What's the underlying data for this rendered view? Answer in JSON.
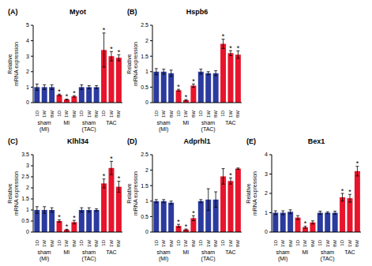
{
  "chart_data": [
    {
      "type": "bar",
      "panel": "(A)",
      "title": "Myot",
      "ylabel": "Relative mRNA expression",
      "categories": [
        "1D",
        "1W",
        "8W",
        "1D",
        "1W",
        "8W",
        "1D",
        "1W",
        "8W",
        "1D",
        "1W",
        "8W"
      ],
      "groups": [
        "sham (MI)",
        "MI",
        "sham (TAC)",
        "TAC"
      ],
      "values": [
        1.0,
        1.0,
        1.0,
        0.5,
        0.2,
        0.4,
        1.0,
        1.0,
        1.0,
        3.4,
        3.0,
        2.9
      ],
      "errors": [
        0.2,
        0.15,
        0.15,
        0.05,
        0.03,
        0.05,
        0.15,
        0.1,
        0.1,
        1.1,
        0.3,
        0.2
      ],
      "annotations": [
        null,
        null,
        null,
        "*",
        "*",
        "*",
        null,
        null,
        null,
        "*",
        "*",
        "*"
      ],
      "colors": [
        "#2b3a9e",
        "#2b3a9e",
        "#2b3a9e",
        "#e8142b",
        "#e8142b",
        "#e8142b",
        "#2b3a9e",
        "#2b3a9e",
        "#2b3a9e",
        "#e8142b",
        "#e8142b",
        "#e8142b"
      ],
      "ylim": [
        0,
        5
      ],
      "yticks": [
        0,
        1,
        2,
        3,
        4,
        5
      ]
    },
    {
      "type": "bar",
      "panel": "(B)",
      "title": "Hspb6",
      "ylabel": "Relative mRNA expression",
      "categories": [
        "1D",
        "1W",
        "8W",
        "1D",
        "1W",
        "8W",
        "1D",
        "1W",
        "8W",
        "1D",
        "1W",
        "8W"
      ],
      "groups": [
        "sham (MI)",
        "MI",
        "sham (TAC)",
        "TAC"
      ],
      "values": [
        1.0,
        1.0,
        0.95,
        0.4,
        0.08,
        0.55,
        1.0,
        0.95,
        0.95,
        1.9,
        1.6,
        1.55
      ],
      "errors": [
        0.1,
        0.08,
        0.1,
        0.03,
        0.02,
        0.05,
        0.08,
        0.05,
        0.08,
        0.15,
        0.08,
        0.12
      ],
      "annotations": [
        null,
        null,
        null,
        "*",
        "*",
        "*",
        null,
        null,
        null,
        "*",
        "*",
        "*"
      ],
      "colors": [
        "#2b3a9e",
        "#2b3a9e",
        "#2b3a9e",
        "#e8142b",
        "#e8142b",
        "#e8142b",
        "#2b3a9e",
        "#2b3a9e",
        "#2b3a9e",
        "#e8142b",
        "#e8142b",
        "#e8142b"
      ],
      "ylim": [
        0,
        2.5
      ],
      "yticks": [
        0,
        0.5,
        1,
        1.5,
        2,
        2.5
      ]
    },
    {
      "type": "bar",
      "panel": "(C)",
      "title": "Klhl34",
      "ylabel": "Relative mRNA expression",
      "categories": [
        "1D",
        "1W",
        "8W",
        "1D",
        "1W",
        "8W",
        "1D",
        "1W",
        "8W",
        "1D",
        "1W",
        "8W"
      ],
      "groups": [
        "sham (MI)",
        "MI",
        "sham (TAC)",
        "TAC"
      ],
      "values": [
        1.0,
        1.0,
        1.0,
        0.5,
        0.1,
        0.45,
        1.0,
        1.0,
        1.0,
        2.2,
        2.9,
        2.05
      ],
      "errors": [
        0.15,
        0.15,
        0.1,
        0.05,
        0.03,
        0.08,
        0.1,
        0.1,
        0.05,
        0.2,
        0.3,
        0.25
      ],
      "annotations": [
        null,
        null,
        null,
        "*",
        "*",
        "*",
        null,
        null,
        null,
        "*",
        "*",
        "*"
      ],
      "colors": [
        "#2b3a9e",
        "#2b3a9e",
        "#2b3a9e",
        "#e8142b",
        "#e8142b",
        "#e8142b",
        "#2b3a9e",
        "#2b3a9e",
        "#2b3a9e",
        "#e8142b",
        "#e8142b",
        "#e8142b"
      ],
      "ylim": [
        0,
        3.5
      ],
      "yticks": [
        0,
        0.5,
        1,
        1.5,
        2,
        2.5,
        3,
        3.5
      ]
    },
    {
      "type": "bar",
      "panel": "(D)",
      "title": "Adprhl1",
      "ylabel": "Relative mRNA expression",
      "categories": [
        "1D",
        "1W",
        "8W",
        "1D",
        "1W",
        "8W",
        "1D",
        "1W",
        "8W",
        "1D",
        "1W",
        "8W"
      ],
      "groups": [
        "sham (MI)",
        "MI",
        "sham (TAC)",
        "TAC"
      ],
      "values": [
        1.0,
        1.0,
        0.95,
        0.2,
        0.08,
        0.45,
        1.0,
        1.05,
        1.05,
        1.8,
        1.65,
        2.05
      ],
      "errors": [
        0.05,
        0.05,
        0.05,
        0.05,
        0.02,
        0.08,
        0.05,
        0.35,
        0.25,
        0.25,
        0.1,
        0.02
      ],
      "annotations": [
        null,
        null,
        null,
        "*",
        "*",
        "*",
        null,
        null,
        null,
        null,
        "*",
        null
      ],
      "colors": [
        "#2b3a9e",
        "#2b3a9e",
        "#2b3a9e",
        "#e8142b",
        "#e8142b",
        "#e8142b",
        "#2b3a9e",
        "#2b3a9e",
        "#2b3a9e",
        "#e8142b",
        "#e8142b",
        "#e8142b"
      ],
      "ylim": [
        0,
        2.5
      ],
      "yticks": [
        0,
        0.5,
        1,
        1.5,
        2,
        2.5
      ]
    },
    {
      "type": "bar",
      "panel": "(E)",
      "title": "Bex1",
      "ylabel": "Relative mRNA expression",
      "categories": [
        "1D",
        "1W",
        "8W",
        "1D",
        "1W",
        "8W",
        "1D",
        "1W",
        "8W",
        "1D",
        "1W",
        "8W"
      ],
      "groups": [
        "sham (MI)",
        "MI",
        "sham (TAC)",
        "TAC"
      ],
      "values": [
        1.0,
        1.0,
        1.05,
        0.75,
        0.25,
        0.5,
        1.0,
        1.0,
        1.0,
        1.8,
        1.75,
        3.15
      ],
      "errors": [
        0.1,
        0.1,
        0.1,
        0.1,
        0.05,
        0.08,
        0.08,
        0.05,
        0.08,
        0.2,
        0.2,
        0.25
      ],
      "annotations": [
        null,
        null,
        null,
        null,
        "*",
        null,
        null,
        null,
        null,
        "*",
        "*",
        "*"
      ],
      "colors": [
        "#2b3a9e",
        "#2b3a9e",
        "#2b3a9e",
        "#e8142b",
        "#e8142b",
        "#e8142b",
        "#2b3a9e",
        "#2b3a9e",
        "#2b3a9e",
        "#e8142b",
        "#e8142b",
        "#e8142b"
      ],
      "ylim": [
        0,
        4
      ],
      "yticks": [
        0,
        1,
        2,
        3,
        4
      ]
    }
  ]
}
